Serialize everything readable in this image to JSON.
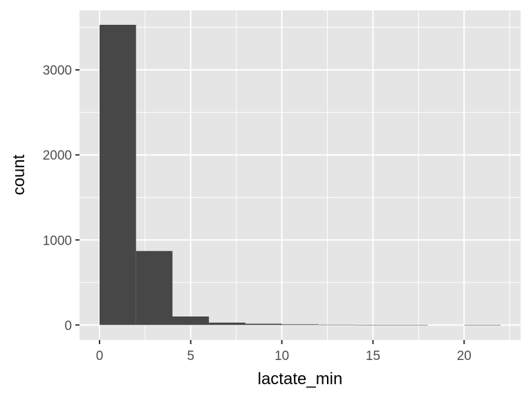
{
  "chart_data": {
    "type": "bar",
    "subtype": "histogram",
    "xlabel": "lactate_min",
    "ylabel": "count",
    "xlim": [
      -1.1,
      23.1
    ],
    "ylim": [
      -176,
      3700
    ],
    "x_ticks": [
      0,
      5,
      10,
      15,
      20
    ],
    "y_ticks": [
      0,
      1000,
      2000,
      3000
    ],
    "grid": true,
    "bin_width": 2,
    "bins": [
      {
        "start": 0,
        "end": 2,
        "count": 3530
      },
      {
        "start": 2,
        "end": 4,
        "count": 870
      },
      {
        "start": 4,
        "end": 6,
        "count": 100
      },
      {
        "start": 6,
        "end": 8,
        "count": 28
      },
      {
        "start": 8,
        "end": 10,
        "count": 15
      },
      {
        "start": 10,
        "end": 12,
        "count": 8
      },
      {
        "start": 12,
        "end": 14,
        "count": 4
      },
      {
        "start": 14,
        "end": 16,
        "count": 2
      },
      {
        "start": 16,
        "end": 18,
        "count": 1
      },
      {
        "start": 18,
        "end": 20,
        "count": 0
      },
      {
        "start": 20,
        "end": 22,
        "count": 1
      }
    ],
    "colors": {
      "bar": "#474747",
      "panel": "#e5e5e5",
      "grid": "#ffffff"
    }
  }
}
